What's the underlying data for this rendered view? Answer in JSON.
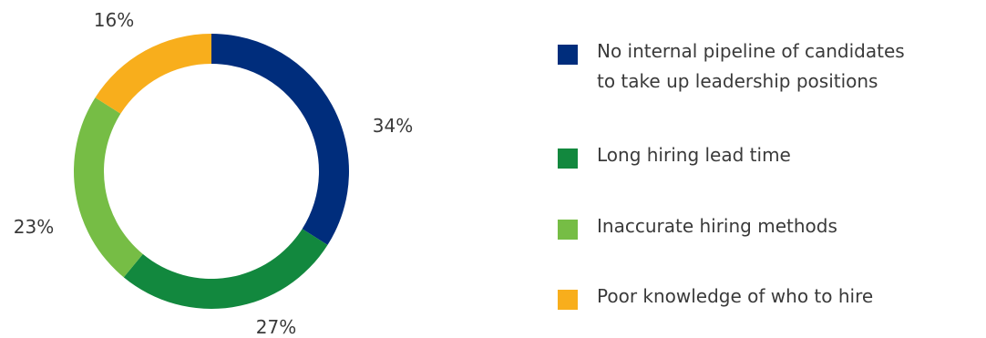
{
  "chart_data": {
    "type": "pie",
    "donut": true,
    "categories": [
      "No internal pipeline of candidates\nto take up leadership positions",
      "Long hiring lead time",
      "Inaccurate hiring methods",
      "Poor knowledge of who to hire"
    ],
    "values": [
      34,
      27,
      23,
      16
    ],
    "labels": [
      "34%",
      "27%",
      "23%",
      "16%"
    ],
    "colors": [
      "#002d7c",
      "#12883e",
      "#76bd45",
      "#f8ae1c"
    ],
    "legend_position": "right"
  }
}
